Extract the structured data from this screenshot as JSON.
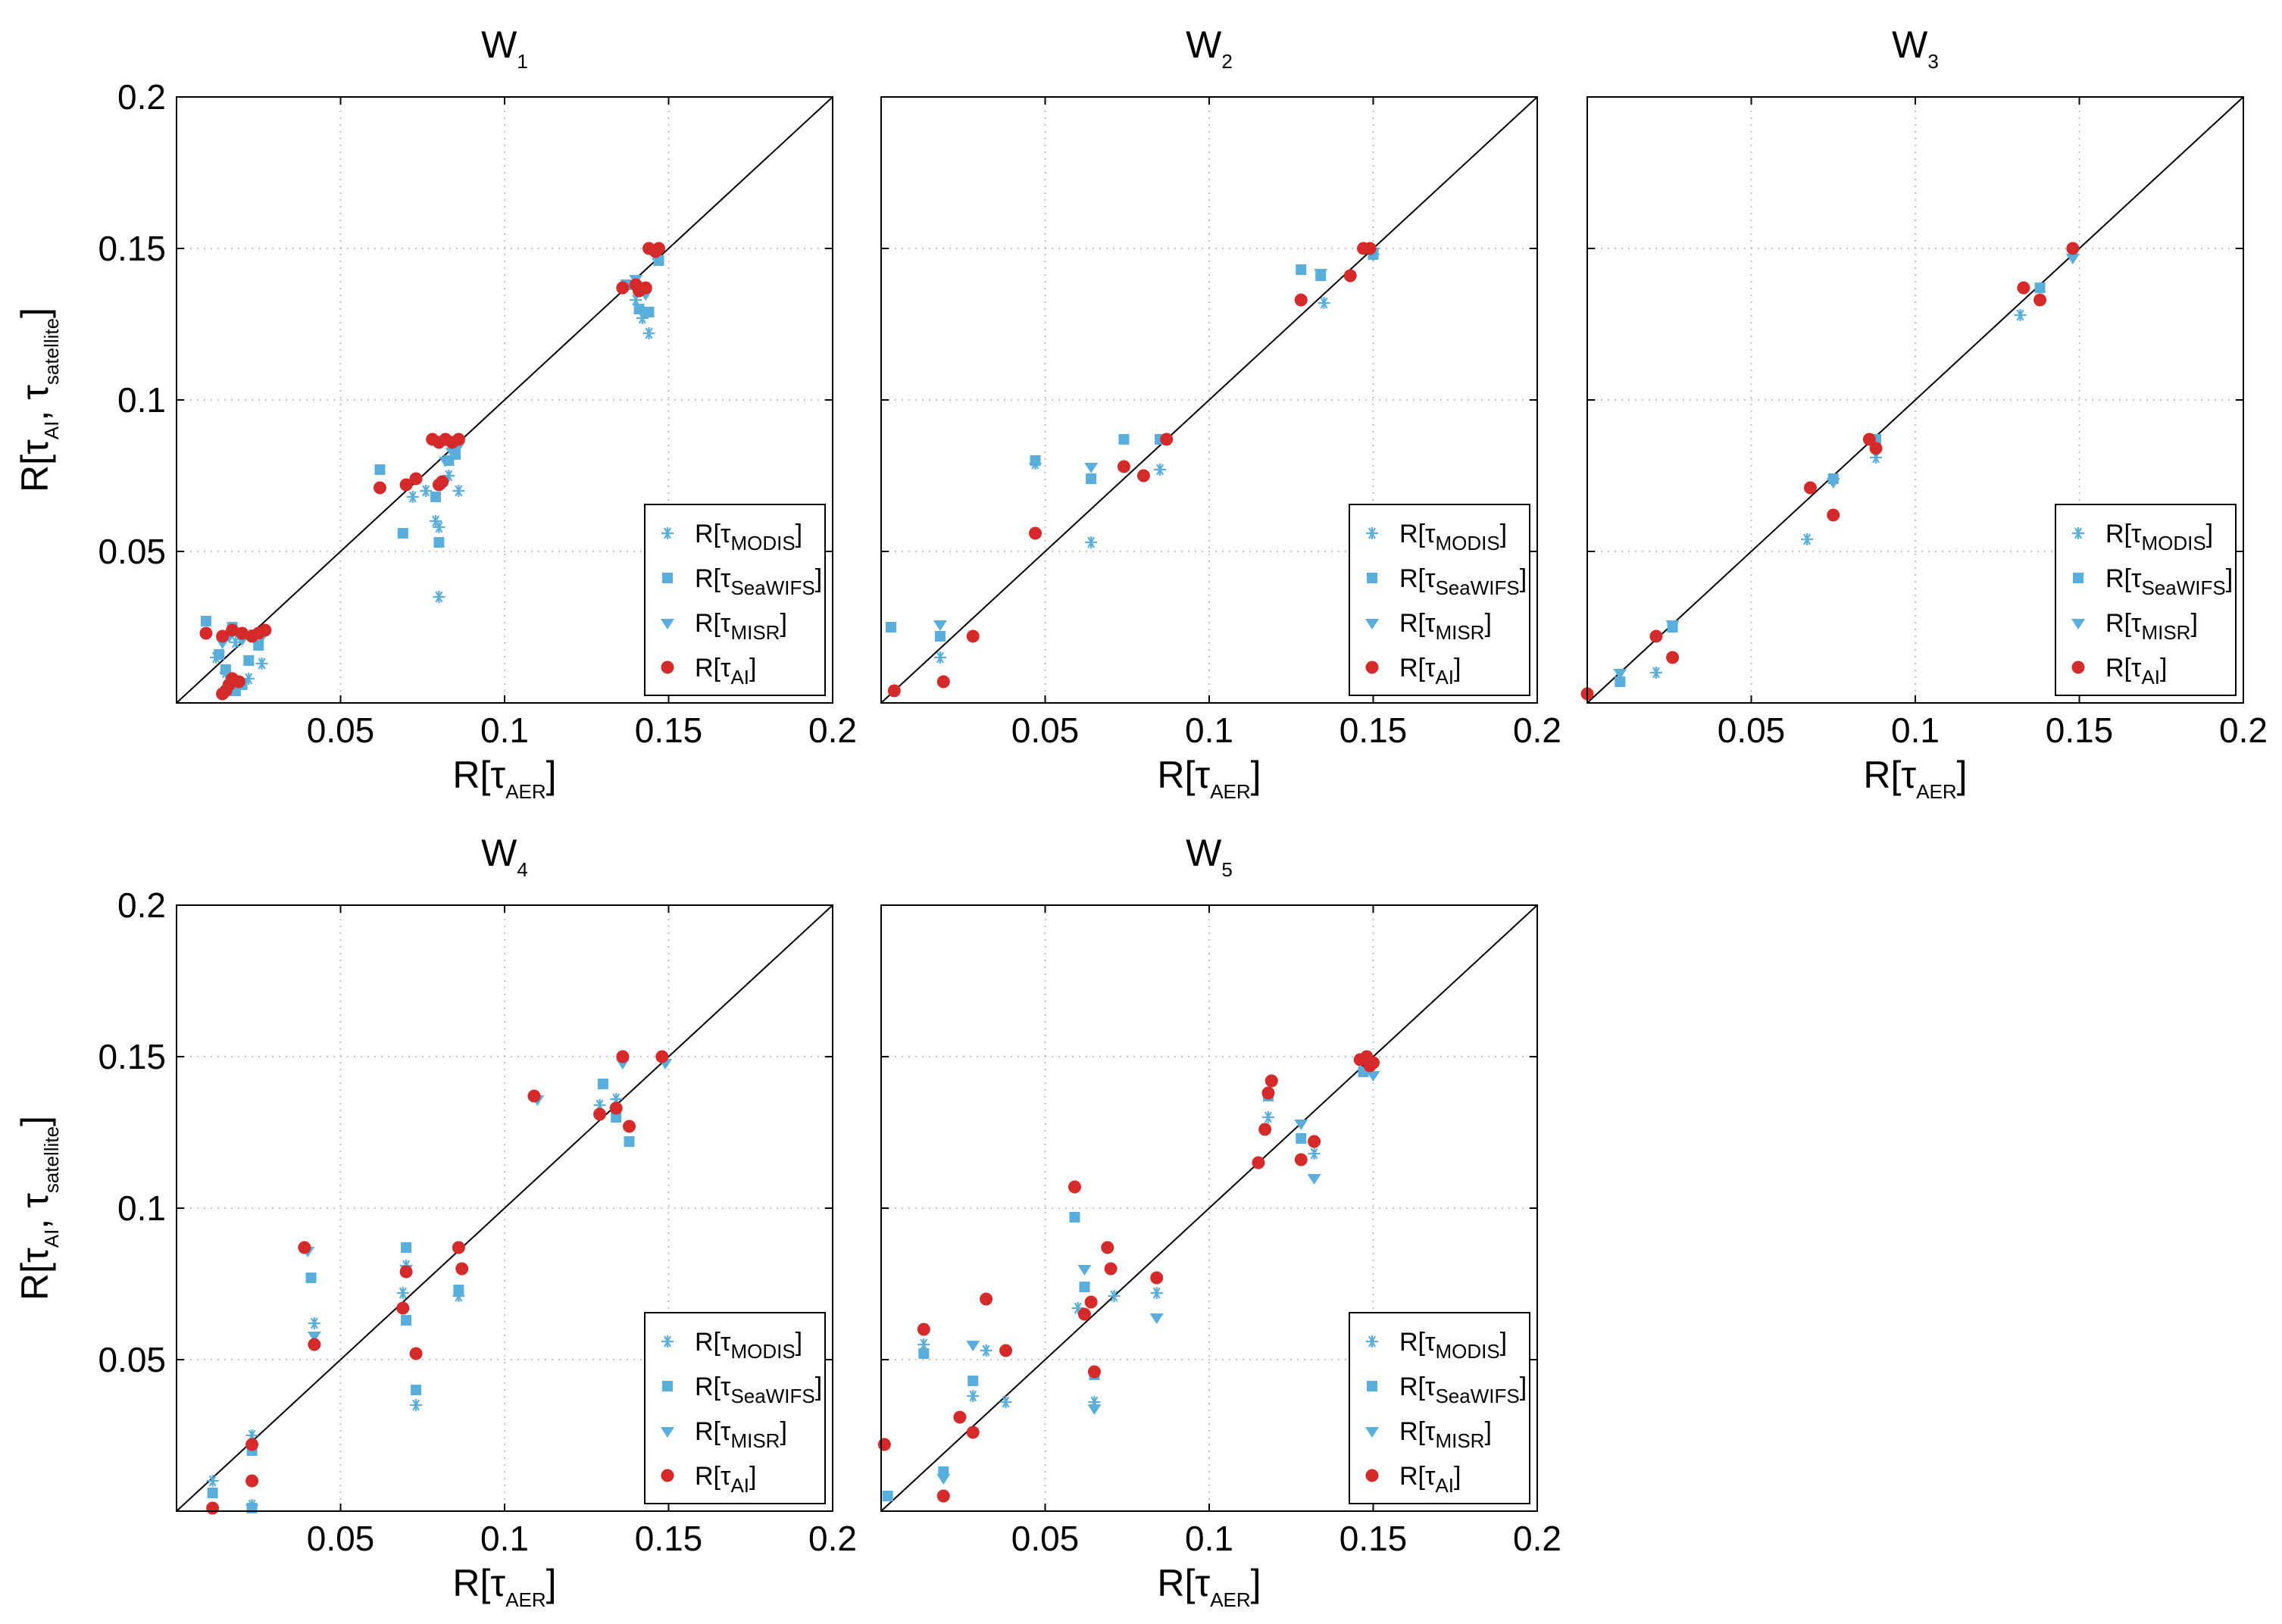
{
  "figure": {
    "xlabel_base": "R[τ",
    "xlabel_sub": "AER",
    "xlabel_close": "]",
    "ylabel_base": "R[τ",
    "ylabel_sub1": "AI",
    "ylabel_mid": ", τ",
    "ylabel_sub2": "satellite",
    "ylabel_close": "]",
    "xticks": [
      "0.05",
      "0.1",
      "0.15",
      "0.2"
    ],
    "yticks": [
      "0.05",
      "0.1",
      "0.15",
      "0.2"
    ],
    "legend": [
      {
        "base": "R[τ",
        "sub": "MODIS",
        "close": "]",
        "marker": "asterisk"
      },
      {
        "base": "R[τ",
        "sub": "SeaWIFS",
        "close": "]",
        "marker": "square"
      },
      {
        "base": "R[τ",
        "sub": "MISR",
        "close": "]",
        "marker": "triangle-down"
      },
      {
        "base": "R[τ",
        "sub": "AI",
        "close": "]",
        "marker": "circle"
      }
    ],
    "colors": {
      "satellite": "#5aaedc",
      "ai": "#d42a2a",
      "axis": "#000000"
    }
  },
  "chart_data": [
    {
      "type": "scatter",
      "title_base": "W",
      "title_sub": "1",
      "xlim": [
        0,
        0.2
      ],
      "ylim": [
        0,
        0.2
      ],
      "identity_line": true,
      "grid": true,
      "legend_position": "lower-right",
      "series": [
        {
          "name": "MODIS",
          "marker": "asterisk",
          "x": [
            0.012,
            0.015,
            0.018,
            0.022,
            0.026,
            0.072,
            0.076,
            0.08,
            0.08,
            0.083,
            0.086,
            0.079,
            0.14,
            0.142,
            0.144,
            0.146
          ],
          "y": [
            0.015,
            0.01,
            0.02,
            0.008,
            0.013,
            0.068,
            0.07,
            0.058,
            0.035,
            0.075,
            0.07,
            0.06,
            0.133,
            0.127,
            0.122,
            0.148
          ]
        },
        {
          "name": "SeaWIFS",
          "marker": "square",
          "x": [
            0.009,
            0.013,
            0.015,
            0.017,
            0.018,
            0.02,
            0.022,
            0.025,
            0.062,
            0.069,
            0.079,
            0.08,
            0.083,
            0.085,
            0.137,
            0.141,
            0.144,
            0.147
          ],
          "y": [
            0.027,
            0.016,
            0.011,
            0.025,
            0.004,
            0.006,
            0.014,
            0.019,
            0.077,
            0.056,
            0.068,
            0.053,
            0.08,
            0.082,
            0.138,
            0.13,
            0.129,
            0.146
          ]
        },
        {
          "name": "MISR",
          "marker": "triangle-down",
          "x": [
            0.014,
            0.016,
            0.02,
            0.024,
            0.026,
            0.082,
            0.084,
            0.086,
            0.14,
            0.143
          ],
          "y": [
            0.02,
            0.022,
            0.021,
            0.023,
            0.022,
            0.08,
            0.083,
            0.085,
            0.14,
            0.135
          ]
        },
        {
          "name": "AI",
          "marker": "circle",
          "x": [
            0.009,
            0.014,
            0.017,
            0.02,
            0.023,
            0.025,
            0.027,
            0.014,
            0.015,
            0.017,
            0.019,
            0.016,
            0.062,
            0.07,
            0.073,
            0.078,
            0.08,
            0.082,
            0.084,
            0.086,
            0.08,
            0.081,
            0.136,
            0.14,
            0.141,
            0.143,
            0.144,
            0.146,
            0.147
          ],
          "y": [
            0.023,
            0.022,
            0.024,
            0.023,
            0.022,
            0.023,
            0.024,
            0.003,
            0.004,
            0.008,
            0.007,
            0.006,
            0.071,
            0.072,
            0.074,
            0.087,
            0.086,
            0.087,
            0.086,
            0.087,
            0.072,
            0.073,
            0.137,
            0.138,
            0.136,
            0.137,
            0.15,
            0.149,
            0.15
          ]
        }
      ]
    },
    {
      "type": "scatter",
      "title_base": "W",
      "title_sub": "2",
      "xlim": [
        0,
        0.2
      ],
      "ylim": [
        0,
        0.2
      ],
      "identity_line": true,
      "grid": true,
      "legend_position": "lower-right",
      "series": [
        {
          "name": "MODIS",
          "marker": "asterisk",
          "x": [
            0.018,
            0.047,
            0.064,
            0.085,
            0.135,
            0.15
          ],
          "y": [
            0.015,
            0.079,
            0.053,
            0.077,
            0.132,
            0.148
          ]
        },
        {
          "name": "SeaWIFS",
          "marker": "square",
          "x": [
            0.003,
            0.018,
            0.047,
            0.064,
            0.074,
            0.085,
            0.128,
            0.134,
            0.15
          ],
          "y": [
            0.025,
            0.022,
            0.08,
            0.074,
            0.087,
            0.087,
            0.143,
            0.141,
            0.148
          ]
        },
        {
          "name": "MISR",
          "marker": "triangle-down",
          "x": [
            0.018,
            0.064,
            0.134,
            0.15
          ],
          "y": [
            0.026,
            0.078,
            0.142,
            0.149
          ]
        },
        {
          "name": "AI",
          "marker": "circle",
          "x": [
            0.004,
            0.019,
            0.028,
            0.047,
            0.074,
            0.08,
            0.087,
            0.128,
            0.143,
            0.147,
            0.149
          ],
          "y": [
            0.004,
            0.007,
            0.022,
            0.056,
            0.078,
            0.075,
            0.087,
            0.133,
            0.141,
            0.15,
            0.15
          ]
        }
      ]
    },
    {
      "type": "scatter",
      "title_base": "W",
      "title_sub": "3",
      "xlim": [
        0,
        0.2
      ],
      "ylim": [
        0,
        0.2
      ],
      "identity_line": true,
      "grid": true,
      "legend_position": "lower-right",
      "series": [
        {
          "name": "MODIS",
          "marker": "asterisk",
          "x": [
            0.021,
            0.067,
            0.088,
            0.132,
            0.148
          ],
          "y": [
            0.01,
            0.054,
            0.081,
            0.128,
            0.148
          ]
        },
        {
          "name": "SeaWIFS",
          "marker": "square",
          "x": [
            0.01,
            0.026,
            0.075,
            0.088,
            0.138
          ],
          "y": [
            0.007,
            0.025,
            0.074,
            0.087,
            0.137
          ]
        },
        {
          "name": "MISR",
          "marker": "triangle-down",
          "x": [
            0.01,
            0.026,
            0.075,
            0.148
          ],
          "y": [
            0.01,
            0.026,
            0.073,
            0.147
          ]
        },
        {
          "name": "AI",
          "marker": "circle",
          "x": [
            0.0,
            0.021,
            0.026,
            0.068,
            0.075,
            0.086,
            0.088,
            0.133,
            0.138,
            0.148
          ],
          "y": [
            0.003,
            0.022,
            0.015,
            0.071,
            0.062,
            0.087,
            0.084,
            0.137,
            0.133,
            0.15
          ]
        }
      ]
    },
    {
      "type": "scatter",
      "title_base": "W",
      "title_sub": "4",
      "xlim": [
        0,
        0.2
      ],
      "ylim": [
        0,
        0.2
      ],
      "identity_line": true,
      "grid": true,
      "legend_position": "lower-right",
      "series": [
        {
          "name": "MODIS",
          "marker": "asterisk",
          "x": [
            0.011,
            0.023,
            0.023,
            0.042,
            0.069,
            0.07,
            0.073,
            0.086,
            0.129,
            0.134
          ],
          "y": [
            0.01,
            0.025,
            0.002,
            0.062,
            0.072,
            0.081,
            0.035,
            0.071,
            0.134,
            0.136
          ]
        },
        {
          "name": "SeaWIFS",
          "marker": "square",
          "x": [
            0.011,
            0.023,
            0.023,
            0.041,
            0.07,
            0.07,
            0.073,
            0.086,
            0.13,
            0.134,
            0.138
          ],
          "y": [
            0.006,
            0.02,
            0.001,
            0.077,
            0.087,
            0.063,
            0.04,
            0.073,
            0.141,
            0.13,
            0.122
          ]
        },
        {
          "name": "MISR",
          "marker": "triangle-down",
          "x": [
            0.04,
            0.042,
            0.07,
            0.11,
            0.136,
            0.149
          ],
          "y": [
            0.086,
            0.058,
            0.08,
            0.136,
            0.148,
            0.148
          ]
        },
        {
          "name": "AI",
          "marker": "circle",
          "x": [
            0.011,
            0.023,
            0.023,
            0.039,
            0.042,
            0.069,
            0.07,
            0.073,
            0.086,
            0.087,
            0.109,
            0.129,
            0.134,
            0.136,
            0.138,
            0.148
          ],
          "y": [
            0.001,
            0.022,
            0.01,
            0.087,
            0.055,
            0.067,
            0.079,
            0.052,
            0.087,
            0.08,
            0.137,
            0.131,
            0.133,
            0.15,
            0.127,
            0.15
          ]
        }
      ]
    },
    {
      "type": "scatter",
      "title_base": "W",
      "title_sub": "5",
      "xlim": [
        0,
        0.2
      ],
      "ylim": [
        0,
        0.2
      ],
      "identity_line": true,
      "grid": true,
      "legend_position": "lower-right",
      "series": [
        {
          "name": "MODIS",
          "marker": "asterisk",
          "x": [
            0.013,
            0.028,
            0.032,
            0.038,
            0.06,
            0.065,
            0.071,
            0.084,
            0.118,
            0.132
          ],
          "y": [
            0.055,
            0.038,
            0.053,
            0.036,
            0.067,
            0.036,
            0.071,
            0.072,
            0.13,
            0.118
          ]
        },
        {
          "name": "SeaWIFS",
          "marker": "square",
          "x": [
            0.002,
            0.013,
            0.019,
            0.028,
            0.059,
            0.062,
            0.065,
            0.118,
            0.128,
            0.147
          ],
          "y": [
            0.005,
            0.052,
            0.013,
            0.043,
            0.097,
            0.074,
            0.045,
            0.137,
            0.123,
            0.145
          ]
        },
        {
          "name": "MISR",
          "marker": "triangle-down",
          "x": [
            0.019,
            0.028,
            0.062,
            0.065,
            0.084,
            0.128,
            0.132,
            0.15
          ],
          "y": [
            0.011,
            0.055,
            0.08,
            0.034,
            0.064,
            0.128,
            0.11,
            0.144
          ]
        },
        {
          "name": "AI",
          "marker": "circle",
          "x": [
            0.001,
            0.013,
            0.019,
            0.024,
            0.028,
            0.032,
            0.038,
            0.059,
            0.062,
            0.064,
            0.065,
            0.069,
            0.07,
            0.084,
            0.115,
            0.117,
            0.118,
            0.119,
            0.128,
            0.132,
            0.146,
            0.148,
            0.149,
            0.15
          ],
          "y": [
            0.022,
            0.06,
            0.005,
            0.031,
            0.026,
            0.07,
            0.053,
            0.107,
            0.065,
            0.069,
            0.046,
            0.087,
            0.08,
            0.077,
            0.115,
            0.126,
            0.138,
            0.142,
            0.116,
            0.122,
            0.149,
            0.15,
            0.147,
            0.148
          ]
        }
      ]
    }
  ]
}
